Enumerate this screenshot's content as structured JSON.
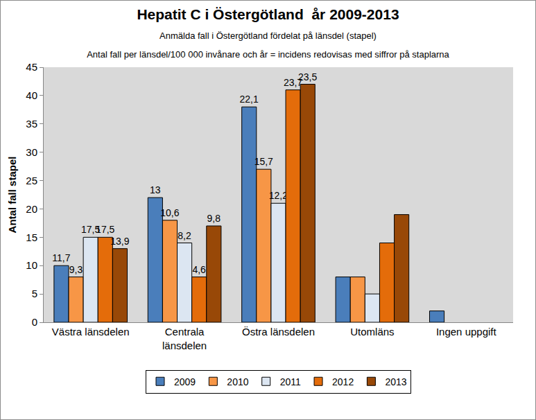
{
  "chart_data": {
    "type": "bar",
    "title": "Hepatit C i Östergötland  år 2009-2013",
    "subtitle": [
      "Anmälda fall i Östergötland fördelat på länsdel (stapel)",
      "Antal fall per länsdel/100 000 invånare och år = incidens redovisas med siffror på staplarna"
    ],
    "y_label": "Antal fall stapel",
    "categories": [
      "Västra länsdelen",
      "Centrala\nlänsdelen",
      "Östra länsdelen",
      "Utomläns",
      "Ingen uppgift"
    ],
    "series": [
      {
        "name": "2009",
        "color": "#4A7EBB",
        "values": [
          10,
          22,
          38,
          8,
          2
        ],
        "incidence": [
          "11,7",
          "13",
          "22,1",
          null,
          null
        ]
      },
      {
        "name": "2010",
        "color": "#F79646",
        "values": [
          8,
          18,
          27,
          8,
          null
        ],
        "incidence": [
          "9,3",
          "10,6",
          "15,7",
          null,
          null
        ]
      },
      {
        "name": "2011",
        "color": "#DCE6F2",
        "values": [
          15,
          14,
          21,
          5,
          null
        ],
        "incidence": [
          "17,5",
          "8,2",
          "12,2",
          null,
          null
        ]
      },
      {
        "name": "2012",
        "color": "#E46C0A",
        "values": [
          15,
          8,
          41,
          14,
          null
        ],
        "incidence": [
          "17,5",
          "4,6",
          "23,7",
          null,
          null
        ]
      },
      {
        "name": "2013",
        "color": "#984807",
        "values": [
          13,
          17,
          42,
          19,
          null
        ],
        "incidence": [
          "13,9",
          "9,8",
          "23,5",
          null,
          null
        ]
      }
    ],
    "ylim": [
      0,
      45
    ],
    "yticks": [
      0,
      5,
      10,
      15,
      20,
      25,
      30,
      35,
      40,
      45
    ],
    "grid": false,
    "legend": "bottom"
  }
}
